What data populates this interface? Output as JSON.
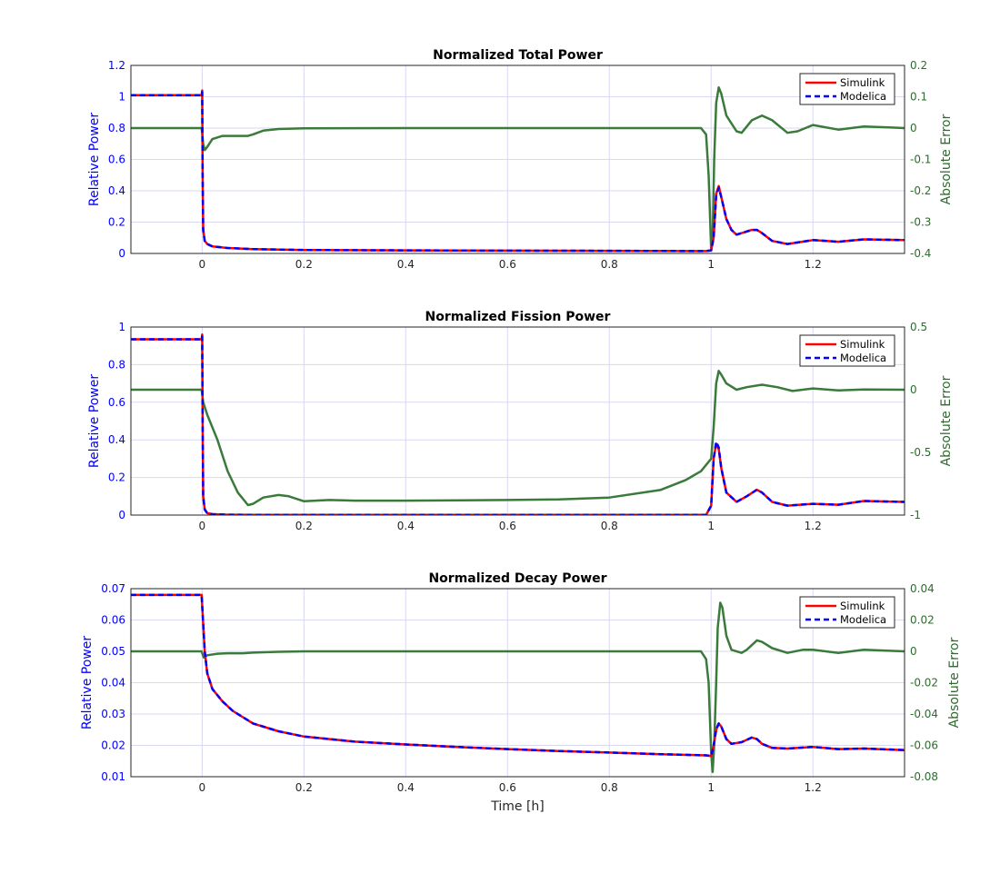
{
  "figure": {
    "xlabel": "Time [h]",
    "colors": {
      "left_axis": "#0000ff",
      "right_axis": "#2e6b2e",
      "simulink": "#ff0000",
      "modelica": "#0000ff",
      "error": "#3a7a3a",
      "grid": "#d9d9ef"
    }
  },
  "chart_data": [
    {
      "type": "line",
      "title": "Normalized Total Power",
      "ylabel": "Relative Power",
      "ylabel_right": "Absolute Error",
      "xlim": [
        -0.14,
        1.38
      ],
      "ylim": [
        0,
        1.2
      ],
      "ylim_right": [
        -0.4,
        0.2
      ],
      "xticks": [
        0,
        0.2,
        0.4,
        0.6,
        0.8,
        1,
        1.2
      ],
      "xtick_labels": [
        "0",
        "0.2",
        "0.4",
        "0.6",
        "0.8",
        "1",
        "1.2"
      ],
      "yticks": [
        0,
        0.2,
        0.4,
        0.6,
        0.8,
        1,
        1.2
      ],
      "ytick_labels": [
        "0",
        "0.2",
        "0.4",
        "0.6",
        "0.8",
        "1",
        "1.2"
      ],
      "yticks_right": [
        -0.4,
        -0.3,
        -0.2,
        -0.1,
        0,
        0.1,
        0.2
      ],
      "ytick_labels_right": [
        "-0.4",
        "-0.3",
        "-0.2",
        "-0.1",
        "0",
        "0.1",
        "0.2"
      ],
      "grid": true,
      "legend_position": "top-right",
      "series": [
        {
          "name": "Simulink",
          "style": "solid",
          "axis": "left",
          "x": [
            -0.14,
            -0.001,
            0,
            0.001,
            0.002,
            0.005,
            0.01,
            0.02,
            0.05,
            0.1,
            0.2,
            0.4,
            0.6,
            0.8,
            0.99,
            1.0,
            1.005,
            1.01,
            1.015,
            1.02,
            1.03,
            1.04,
            1.05,
            1.06,
            1.08,
            1.09,
            1.1,
            1.12,
            1.15,
            1.2,
            1.25,
            1.3,
            1.38
          ],
          "y": [
            1.01,
            1.01,
            1.04,
            0.5,
            0.15,
            0.08,
            0.06,
            0.045,
            0.035,
            0.028,
            0.022,
            0.02,
            0.018,
            0.017,
            0.015,
            0.02,
            0.1,
            0.38,
            0.43,
            0.36,
            0.22,
            0.15,
            0.12,
            0.13,
            0.15,
            0.15,
            0.13,
            0.08,
            0.06,
            0.085,
            0.075,
            0.09,
            0.085
          ]
        },
        {
          "name": "Modelica",
          "style": "dashed",
          "axis": "left",
          "x": [
            -0.14,
            -0.001,
            0,
            0.001,
            0.002,
            0.005,
            0.01,
            0.02,
            0.05,
            0.1,
            0.2,
            0.4,
            0.6,
            0.8,
            0.99,
            1.0,
            1.005,
            1.01,
            1.015,
            1.02,
            1.03,
            1.04,
            1.05,
            1.06,
            1.08,
            1.09,
            1.1,
            1.12,
            1.15,
            1.2,
            1.25,
            1.3,
            1.38
          ],
          "y": [
            1.01,
            1.01,
            1.03,
            0.5,
            0.15,
            0.08,
            0.06,
            0.045,
            0.035,
            0.028,
            0.022,
            0.02,
            0.018,
            0.017,
            0.015,
            0.02,
            0.1,
            0.37,
            0.42,
            0.36,
            0.22,
            0.15,
            0.12,
            0.13,
            0.15,
            0.15,
            0.13,
            0.08,
            0.06,
            0.085,
            0.075,
            0.09,
            0.085
          ]
        },
        {
          "name": "",
          "style": "solid",
          "axis": "right",
          "x": [
            -0.14,
            -0.001,
            0.002,
            0.005,
            0.01,
            0.02,
            0.04,
            0.07,
            0.09,
            0.1,
            0.12,
            0.15,
            0.2,
            0.4,
            0.6,
            0.8,
            0.98,
            0.99,
            0.995,
            1.0,
            1.003,
            1.006,
            1.01,
            1.015,
            1.02,
            1.03,
            1.05,
            1.06,
            1.08,
            1.1,
            1.12,
            1.15,
            1.17,
            1.2,
            1.25,
            1.3,
            1.35,
            1.38
          ],
          "y": [
            0,
            0,
            -0.05,
            -0.07,
            -0.06,
            -0.035,
            -0.025,
            -0.025,
            -0.025,
            -0.02,
            -0.008,
            -0.003,
            -0.001,
            0,
            0,
            0,
            0,
            -0.02,
            -0.15,
            -0.39,
            -0.35,
            -0.1,
            0.08,
            0.13,
            0.11,
            0.04,
            -0.01,
            -0.015,
            0.025,
            0.04,
            0.025,
            -0.015,
            -0.01,
            0.01,
            -0.005,
            0.005,
            0.002,
            0.0
          ]
        }
      ]
    },
    {
      "type": "line",
      "title": "Normalized Fission Power",
      "ylabel": "Relative Power",
      "ylabel_right": "Absolute Error",
      "xlim": [
        -0.14,
        1.38
      ],
      "ylim": [
        0,
        1
      ],
      "ylim_right": [
        -1,
        0.5
      ],
      "xticks": [
        0,
        0.2,
        0.4,
        0.6,
        0.8,
        1,
        1.2
      ],
      "xtick_labels": [
        "0",
        "0.2",
        "0.4",
        "0.6",
        "0.8",
        "1",
        "1.2"
      ],
      "yticks": [
        0,
        0.2,
        0.4,
        0.6,
        0.8,
        1
      ],
      "ytick_labels": [
        "0",
        "0.2",
        "0.4",
        "0.6",
        "0.8",
        "1"
      ],
      "yticks_right": [
        -1,
        -0.5,
        0,
        0.5
      ],
      "ytick_labels_right": [
        "-1",
        "-0.5",
        "0",
        "0.5"
      ],
      "grid": true,
      "legend_position": "top-right",
      "series": [
        {
          "name": "Simulink",
          "style": "solid",
          "axis": "left",
          "x": [
            -0.14,
            -0.001,
            0,
            0.001,
            0.002,
            0.005,
            0.01,
            0.02,
            0.05,
            0.1,
            0.2,
            0.4,
            0.6,
            0.8,
            0.99,
            1.0,
            1.005,
            1.01,
            1.015,
            1.02,
            1.03,
            1.05,
            1.07,
            1.09,
            1.1,
            1.12,
            1.15,
            1.2,
            1.25,
            1.3,
            1.38
          ],
          "y": [
            0.935,
            0.935,
            0.96,
            0.5,
            0.1,
            0.03,
            0.01,
            0.005,
            0.002,
            0.001,
            0.001,
            0.001,
            0.001,
            0.001,
            0.001,
            0.05,
            0.3,
            0.38,
            0.35,
            0.25,
            0.12,
            0.07,
            0.1,
            0.135,
            0.12,
            0.07,
            0.05,
            0.06,
            0.055,
            0.075,
            0.07
          ]
        },
        {
          "name": "Modelica",
          "style": "dashed",
          "axis": "left",
          "x": [
            -0.14,
            -0.001,
            0,
            0.001,
            0.002,
            0.005,
            0.01,
            0.02,
            0.05,
            0.1,
            0.2,
            0.4,
            0.6,
            0.8,
            0.99,
            1.0,
            1.005,
            1.01,
            1.015,
            1.02,
            1.03,
            1.05,
            1.07,
            1.09,
            1.1,
            1.12,
            1.15,
            1.2,
            1.25,
            1.3,
            1.38
          ],
          "y": [
            0.935,
            0.935,
            0.95,
            0.5,
            0.1,
            0.03,
            0.01,
            0.005,
            0.002,
            0.001,
            0.001,
            0.001,
            0.001,
            0.001,
            0.001,
            0.05,
            0.3,
            0.39,
            0.36,
            0.25,
            0.12,
            0.07,
            0.1,
            0.135,
            0.12,
            0.07,
            0.05,
            0.06,
            0.055,
            0.075,
            0.07
          ]
        },
        {
          "name": "",
          "style": "solid",
          "axis": "right",
          "x": [
            -0.14,
            -0.001,
            0.002,
            0.01,
            0.03,
            0.05,
            0.07,
            0.09,
            0.1,
            0.12,
            0.15,
            0.17,
            0.2,
            0.25,
            0.3,
            0.4,
            0.6,
            0.7,
            0.8,
            0.9,
            0.95,
            0.98,
            1.0,
            1.005,
            1.01,
            1.015,
            1.02,
            1.03,
            1.05,
            1.07,
            1.1,
            1.13,
            1.16,
            1.2,
            1.25,
            1.3,
            1.38
          ],
          "y": [
            0,
            0,
            -0.1,
            -0.2,
            -0.4,
            -0.65,
            -0.82,
            -0.92,
            -0.91,
            -0.86,
            -0.84,
            -0.85,
            -0.89,
            -0.88,
            -0.885,
            -0.885,
            -0.88,
            -0.875,
            -0.86,
            -0.8,
            -0.72,
            -0.65,
            -0.55,
            -0.3,
            0.05,
            0.15,
            0.12,
            0.05,
            0.0,
            0.02,
            0.04,
            0.02,
            -0.01,
            0.01,
            -0.005,
            0.002,
            0.0
          ]
        }
      ]
    },
    {
      "type": "line",
      "title": "Normalized Decay Power",
      "ylabel": "Relative Power",
      "ylabel_right": "Absolute Error",
      "xlabel": "Time [h]",
      "xlim": [
        -0.14,
        1.38
      ],
      "ylim": [
        0.01,
        0.07
      ],
      "ylim_right": [
        -0.08,
        0.04
      ],
      "xticks": [
        0,
        0.2,
        0.4,
        0.6,
        0.8,
        1,
        1.2
      ],
      "xtick_labels": [
        "0",
        "0.2",
        "0.4",
        "0.6",
        "0.8",
        "1",
        "1.2"
      ],
      "yticks": [
        0.01,
        0.02,
        0.03,
        0.04,
        0.05,
        0.06,
        0.07
      ],
      "ytick_labels": [
        "0.01",
        "0.02",
        "0.03",
        "0.04",
        "0.05",
        "0.06",
        "0.07"
      ],
      "yticks_right": [
        -0.08,
        -0.06,
        -0.04,
        -0.02,
        0,
        0.02,
        0.04
      ],
      "ytick_labels_right": [
        "-0.08",
        "-0.06",
        "-0.04",
        "-0.02",
        "0",
        "0.02",
        "0.04"
      ],
      "grid": true,
      "legend_position": "top-right",
      "series": [
        {
          "name": "Simulink",
          "style": "solid",
          "axis": "left",
          "x": [
            -0.14,
            -0.001,
            0.001,
            0.005,
            0.01,
            0.02,
            0.04,
            0.06,
            0.08,
            0.1,
            0.15,
            0.2,
            0.3,
            0.4,
            0.5,
            0.6,
            0.7,
            0.8,
            0.9,
            0.99,
            1.0,
            1.005,
            1.01,
            1.015,
            1.02,
            1.03,
            1.04,
            1.06,
            1.08,
            1.09,
            1.1,
            1.12,
            1.15,
            1.2,
            1.25,
            1.3,
            1.38
          ],
          "y": [
            0.068,
            0.068,
            0.062,
            0.05,
            0.043,
            0.038,
            0.034,
            0.031,
            0.029,
            0.027,
            0.0245,
            0.0228,
            0.0212,
            0.0203,
            0.0195,
            0.0188,
            0.0182,
            0.0177,
            0.0172,
            0.0168,
            0.0166,
            0.02,
            0.025,
            0.027,
            0.026,
            0.022,
            0.0205,
            0.021,
            0.0225,
            0.022,
            0.0205,
            0.0192,
            0.019,
            0.0195,
            0.0188,
            0.019,
            0.0185
          ]
        },
        {
          "name": "Modelica",
          "style": "dashed",
          "axis": "left",
          "x": [
            -0.14,
            -0.001,
            0.001,
            0.005,
            0.01,
            0.02,
            0.04,
            0.06,
            0.08,
            0.1,
            0.15,
            0.2,
            0.3,
            0.4,
            0.5,
            0.6,
            0.7,
            0.8,
            0.9,
            0.99,
            1.0,
            1.005,
            1.01,
            1.015,
            1.02,
            1.03,
            1.04,
            1.06,
            1.08,
            1.09,
            1.1,
            1.12,
            1.15,
            1.2,
            1.25,
            1.3,
            1.38
          ],
          "y": [
            0.068,
            0.068,
            0.062,
            0.05,
            0.043,
            0.038,
            0.034,
            0.031,
            0.029,
            0.027,
            0.0245,
            0.0228,
            0.0212,
            0.0203,
            0.0195,
            0.0188,
            0.0182,
            0.0177,
            0.0172,
            0.0168,
            0.0166,
            0.02,
            0.025,
            0.027,
            0.026,
            0.022,
            0.0205,
            0.021,
            0.0225,
            0.022,
            0.0205,
            0.0192,
            0.019,
            0.0195,
            0.0188,
            0.019,
            0.0185
          ]
        },
        {
          "name": "",
          "style": "solid",
          "axis": "right",
          "x": [
            -0.14,
            -0.001,
            0.003,
            0.01,
            0.03,
            0.05,
            0.08,
            0.1,
            0.15,
            0.2,
            0.3,
            0.4,
            0.6,
            0.8,
            0.98,
            0.99,
            0.995,
            1.0,
            1.003,
            1.006,
            1.01,
            1.013,
            1.018,
            1.022,
            1.03,
            1.04,
            1.06,
            1.07,
            1.09,
            1.1,
            1.12,
            1.15,
            1.18,
            1.2,
            1.25,
            1.3,
            1.38
          ],
          "y": [
            0,
            0,
            -0.004,
            -0.0025,
            -0.0015,
            -0.0012,
            -0.0012,
            -0.0008,
            -0.0003,
            0,
            0,
            0,
            0,
            0,
            0,
            -0.005,
            -0.02,
            -0.065,
            -0.077,
            -0.06,
            -0.02,
            0.015,
            0.031,
            0.028,
            0.01,
            0.001,
            -0.001,
            0.001,
            0.007,
            0.006,
            0.002,
            -0.001,
            0.001,
            0.001,
            -0.001,
            0.001,
            0.0
          ]
        }
      ]
    }
  ]
}
